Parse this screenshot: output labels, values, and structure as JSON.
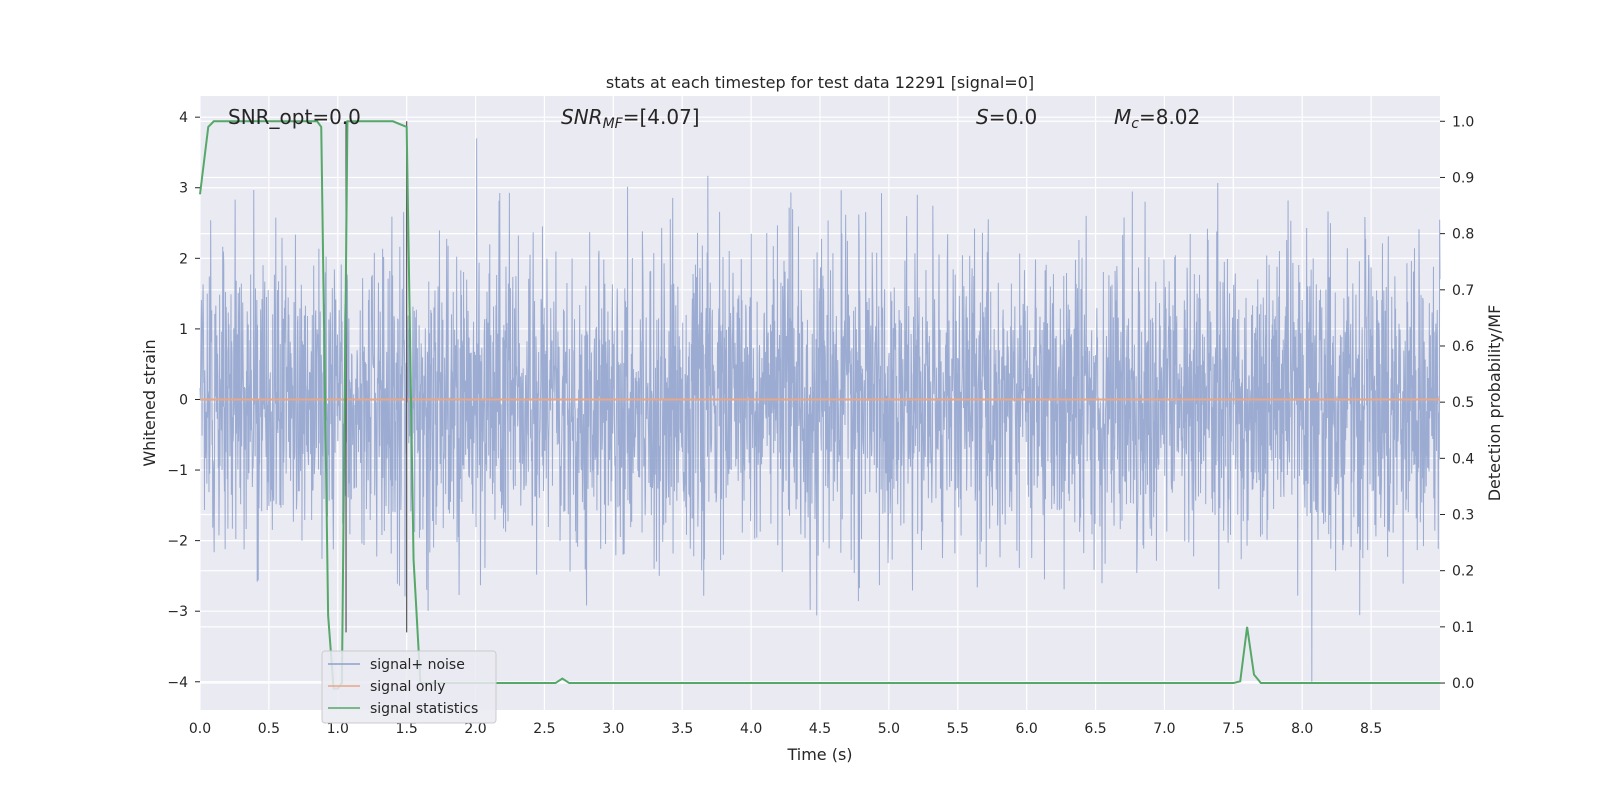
{
  "chart_data": {
    "type": "line",
    "title": "stats at each timestep for test data 12291 [signal=0]",
    "xlabel": "Time (s)",
    "ylabel_left": "Whitened strain",
    "ylabel_right": "Detection probability/MF",
    "xlim": [
      0.0,
      9.0
    ],
    "ylim_left": [
      -4.4,
      4.3
    ],
    "ylim_right": [
      -0.048,
      1.045
    ],
    "x_ticks": [
      "0.0",
      "0.5",
      "1.0",
      "1.5",
      "2.0",
      "2.5",
      "3.0",
      "3.5",
      "4.0",
      "4.5",
      "5.0",
      "5.5",
      "6.0",
      "6.5",
      "7.0",
      "7.5",
      "8.0",
      "8.5"
    ],
    "y_left_ticks": [
      "4",
      "3",
      "2",
      "1",
      "0",
      "−1",
      "−2",
      "−3",
      "−4"
    ],
    "y_right_ticks": [
      "1.0",
      "0.9",
      "0.8",
      "0.7",
      "0.6",
      "0.5",
      "0.4",
      "0.3",
      "0.2",
      "0.1",
      "0.0"
    ],
    "grid": true,
    "legend_position": "lower-left",
    "annotations": {
      "snr_opt": "SNR_opt=0.0",
      "snr_mf_main": "SNR",
      "snr_mf_sub": "MF",
      "snr_mf_value": "=[4.07]",
      "s_main": "S",
      "s_value": "=0.0",
      "mc_main": "M",
      "mc_sub": "c",
      "mc_value": "=8.02"
    },
    "series": [
      {
        "name": "signal+ noise",
        "color": "#8da0cb",
        "axis": "left",
        "description_values": {
          "typical_range": [
            -2.5,
            2.5
          ],
          "peak_max": 3.7,
          "peak_min": -4.0
        }
      },
      {
        "name": "signal only",
        "color": "#e8a888",
        "axis": "left",
        "x": [
          0.0,
          9.0
        ],
        "y": [
          0.0,
          0.0
        ]
      },
      {
        "name": "signal statistics",
        "color": "#55a868",
        "axis": "right",
        "x": [
          0.0,
          0.06,
          0.1,
          0.2,
          0.3,
          0.5,
          0.7,
          0.85,
          0.88,
          0.93,
          0.97,
          1.0,
          1.03,
          1.07,
          1.1,
          1.2,
          1.4,
          1.5,
          1.55,
          1.6,
          1.7,
          2.0,
          2.5,
          2.58,
          2.63,
          2.68,
          2.75,
          3.0,
          4.0,
          5.0,
          6.0,
          7.0,
          7.5,
          7.55,
          7.6,
          7.65,
          7.7,
          7.75,
          7.8,
          8.0,
          8.5,
          8.6,
          9.0
        ],
        "y": [
          0.87,
          0.99,
          1.0,
          1.0,
          1.0,
          1.0,
          1.0,
          1.0,
          0.99,
          0.12,
          -0.01,
          -0.01,
          0.0,
          1.0,
          1.0,
          1.0,
          1.0,
          0.99,
          0.22,
          0.0,
          0.0,
          0.0,
          0.0,
          0.0,
          0.008,
          0.0,
          0.0,
          0.0,
          0.0,
          0.0,
          0.0,
          0.0,
          0.0,
          0.003,
          0.1,
          0.015,
          0.0,
          0.0,
          0.0,
          0.0,
          0.0,
          0.0,
          0.0
        ]
      }
    ],
    "vertical_markers": [
      1.06,
      1.5
    ]
  }
}
